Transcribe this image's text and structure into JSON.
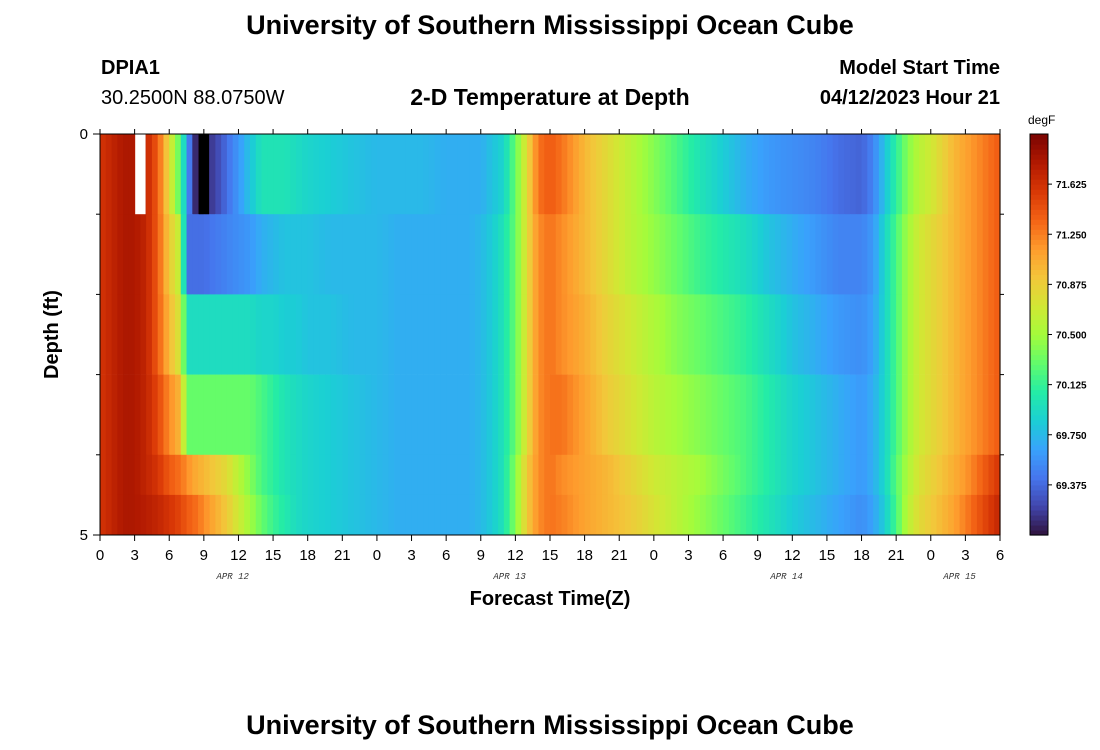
{
  "page": {
    "title_top": "University of Southern Mississippi Ocean Cube",
    "title_bottom": "University of Southern Mississippi Ocean Cube",
    "station_id": "DPIA1",
    "station_coords": "30.2500N  88.0750W",
    "plot_title": "2-D Temperature at Depth",
    "model_start_label": "Model Start Time",
    "model_start_value": "04/12/2023 Hour 21"
  },
  "chart_data": {
    "type": "heatmap",
    "title": "2-D Temperature at Depth",
    "xlabel": "Forecast Time(Z)",
    "ylabel": "Depth (ft)",
    "x_start_hour": 0,
    "x_end_hour": 78,
    "x_tick_step_hours": 3,
    "x_tick_labels": [
      "0",
      "3",
      "6",
      "9",
      "12",
      "15",
      "18",
      "21",
      "0",
      "3",
      "6",
      "9",
      "12",
      "15",
      "18",
      "21",
      "0",
      "3",
      "6",
      "9",
      "12",
      "15",
      "18",
      "21",
      "0",
      "3",
      "6"
    ],
    "date_labels": [
      {
        "text": "APR 12",
        "hour": 11.5
      },
      {
        "text": "APR 13",
        "hour": 35.5
      },
      {
        "text": "APR 14",
        "hour": 59.5
      },
      {
        "text": "APR 15",
        "hour": 74.5
      }
    ],
    "y_range": [
      0,
      5
    ],
    "y_tick_labels": [
      "0",
      "5"
    ],
    "y_minor_ticks": [
      1,
      2,
      3,
      4
    ],
    "depth_levels": [
      0,
      1,
      2,
      3,
      4,
      4.5
    ],
    "colorbar": {
      "unit": "degF",
      "min": 69.0,
      "max": 72.0,
      "labels": [
        "71.625",
        "71.250",
        "70.875",
        "70.500",
        "70.125",
        "69.750",
        "69.375"
      ],
      "colors": [
        "#30123b",
        "#4145ab",
        "#4675ed",
        "#39a2fc",
        "#1bcfd4",
        "#24eca6",
        "#61fc6c",
        "#a4fc3b",
        "#d1e834",
        "#f3c63a",
        "#fe9b2d",
        "#f36315",
        "#d93806",
        "#b11901",
        "#7a0402"
      ]
    },
    "time_breakpoints": [
      0,
      1,
      2,
      3,
      4,
      5,
      6,
      7,
      7.5,
      8,
      8.5,
      9,
      10,
      11,
      12,
      13,
      14,
      15,
      16,
      17,
      18,
      20,
      22,
      24,
      26,
      28,
      30,
      32,
      33,
      34,
      35,
      36,
      37,
      38,
      39,
      40,
      42,
      44,
      46,
      48,
      50,
      52,
      54,
      56,
      58,
      60,
      62,
      64,
      66,
      67,
      68,
      69,
      70,
      71,
      72,
      73,
      74,
      75,
      76,
      77,
      78
    ],
    "temperature_series": [
      {
        "depth": 0,
        "values": [
          71.6,
          71.7,
          71.8,
          71.8,
          71.7,
          71.4,
          70.8,
          70.2,
          69.7,
          69.2,
          69.0,
          69.1,
          69.2,
          69.4,
          69.6,
          69.8,
          70.0,
          70.0,
          70.0,
          69.95,
          69.9,
          69.85,
          69.8,
          69.75,
          69.75,
          69.75,
          69.7,
          69.7,
          69.7,
          69.8,
          69.9,
          70.3,
          70.8,
          71.3,
          71.4,
          71.3,
          71.0,
          70.8,
          70.6,
          70.4,
          70.2,
          70.0,
          69.85,
          69.7,
          69.6,
          69.55,
          69.5,
          69.4,
          69.35,
          69.5,
          69.8,
          70.1,
          70.4,
          70.6,
          70.7,
          70.85,
          71.0,
          71.1,
          71.2,
          71.3,
          71.4
        ]
      },
      {
        "depth": 1,
        "values": [
          71.6,
          71.7,
          71.8,
          71.8,
          71.7,
          71.4,
          70.9,
          70.6,
          69.4,
          69.4,
          69.4,
          69.4,
          69.45,
          69.5,
          69.55,
          69.6,
          69.7,
          69.75,
          69.8,
          69.8,
          69.8,
          69.75,
          69.75,
          69.75,
          69.7,
          69.7,
          69.7,
          69.7,
          69.75,
          69.85,
          70.0,
          70.3,
          70.8,
          71.2,
          71.3,
          71.2,
          71.0,
          70.8,
          70.6,
          70.45,
          70.3,
          70.15,
          70.05,
          69.95,
          69.8,
          69.7,
          69.6,
          69.5,
          69.5,
          69.6,
          69.9,
          70.2,
          70.5,
          70.7,
          70.8,
          70.9,
          71.0,
          71.1,
          71.2,
          71.3,
          71.4
        ]
      },
      {
        "depth": 2,
        "values": [
          71.6,
          71.7,
          71.8,
          71.8,
          71.7,
          71.4,
          71.0,
          70.7,
          69.95,
          69.95,
          69.95,
          69.95,
          69.95,
          69.95,
          69.95,
          69.95,
          69.9,
          69.9,
          69.85,
          69.85,
          69.8,
          69.8,
          69.75,
          69.75,
          69.7,
          69.7,
          69.7,
          69.7,
          69.75,
          69.85,
          70.0,
          70.3,
          70.8,
          71.2,
          71.3,
          71.2,
          71.05,
          70.85,
          70.7,
          70.55,
          70.4,
          70.3,
          70.2,
          70.1,
          69.95,
          69.8,
          69.7,
          69.6,
          69.55,
          69.65,
          69.9,
          70.2,
          70.5,
          70.7,
          70.8,
          70.9,
          71.0,
          71.1,
          71.2,
          71.3,
          71.4
        ]
      },
      {
        "depth": 3,
        "values": [
          71.6,
          71.7,
          71.8,
          71.8,
          71.7,
          71.5,
          71.2,
          71.0,
          70.3,
          70.3,
          70.3,
          70.3,
          70.3,
          70.3,
          70.3,
          70.3,
          70.2,
          70.1,
          70.0,
          69.95,
          69.9,
          69.85,
          69.8,
          69.75,
          69.7,
          69.7,
          69.7,
          69.7,
          69.75,
          69.85,
          70.0,
          70.3,
          70.8,
          71.2,
          71.3,
          71.3,
          71.1,
          70.9,
          70.75,
          70.6,
          70.5,
          70.4,
          70.3,
          70.2,
          70.05,
          69.9,
          69.8,
          69.7,
          69.6,
          69.7,
          69.9,
          70.2,
          70.5,
          70.7,
          70.8,
          70.9,
          71.0,
          71.1,
          71.2,
          71.3,
          71.4
        ]
      },
      {
        "depth": 4,
        "values": [
          71.6,
          71.7,
          71.8,
          71.8,
          71.7,
          71.6,
          71.4,
          71.3,
          71.2,
          71.1,
          71.05,
          71.0,
          70.9,
          70.8,
          70.6,
          70.4,
          70.2,
          70.1,
          70.0,
          69.95,
          69.9,
          69.85,
          69.8,
          69.75,
          69.7,
          69.7,
          69.7,
          69.7,
          69.75,
          69.85,
          70.0,
          70.4,
          70.9,
          71.2,
          71.3,
          71.2,
          71.1,
          71.0,
          70.85,
          70.7,
          70.6,
          70.5,
          70.35,
          70.2,
          70.05,
          69.9,
          69.8,
          69.7,
          69.6,
          69.7,
          69.9,
          70.25,
          70.55,
          70.75,
          70.85,
          70.95,
          71.05,
          71.15,
          71.3,
          71.45,
          71.6
        ]
      },
      {
        "depth": 4.5,
        "values": [
          71.6,
          71.7,
          71.8,
          71.8,
          71.75,
          71.7,
          71.6,
          71.5,
          71.4,
          71.35,
          71.3,
          71.2,
          71.05,
          70.9,
          70.7,
          70.5,
          70.3,
          70.15,
          70.05,
          69.95,
          69.9,
          69.85,
          69.8,
          69.75,
          69.7,
          69.7,
          69.7,
          69.7,
          69.75,
          69.85,
          70.0,
          70.4,
          70.9,
          71.2,
          71.3,
          71.25,
          71.1,
          71.0,
          70.9,
          70.75,
          70.6,
          70.45,
          70.3,
          70.15,
          70.0,
          69.85,
          69.75,
          69.65,
          69.55,
          69.65,
          69.85,
          70.2,
          70.6,
          70.8,
          70.9,
          71.0,
          71.1,
          71.25,
          71.4,
          71.55,
          71.7
        ]
      }
    ],
    "missing_cells": [
      {
        "depth": 0,
        "hour": 3.5,
        "color": "#ffffff"
      },
      {
        "depth": 0,
        "hour": 9,
        "color": "#000000"
      }
    ]
  }
}
